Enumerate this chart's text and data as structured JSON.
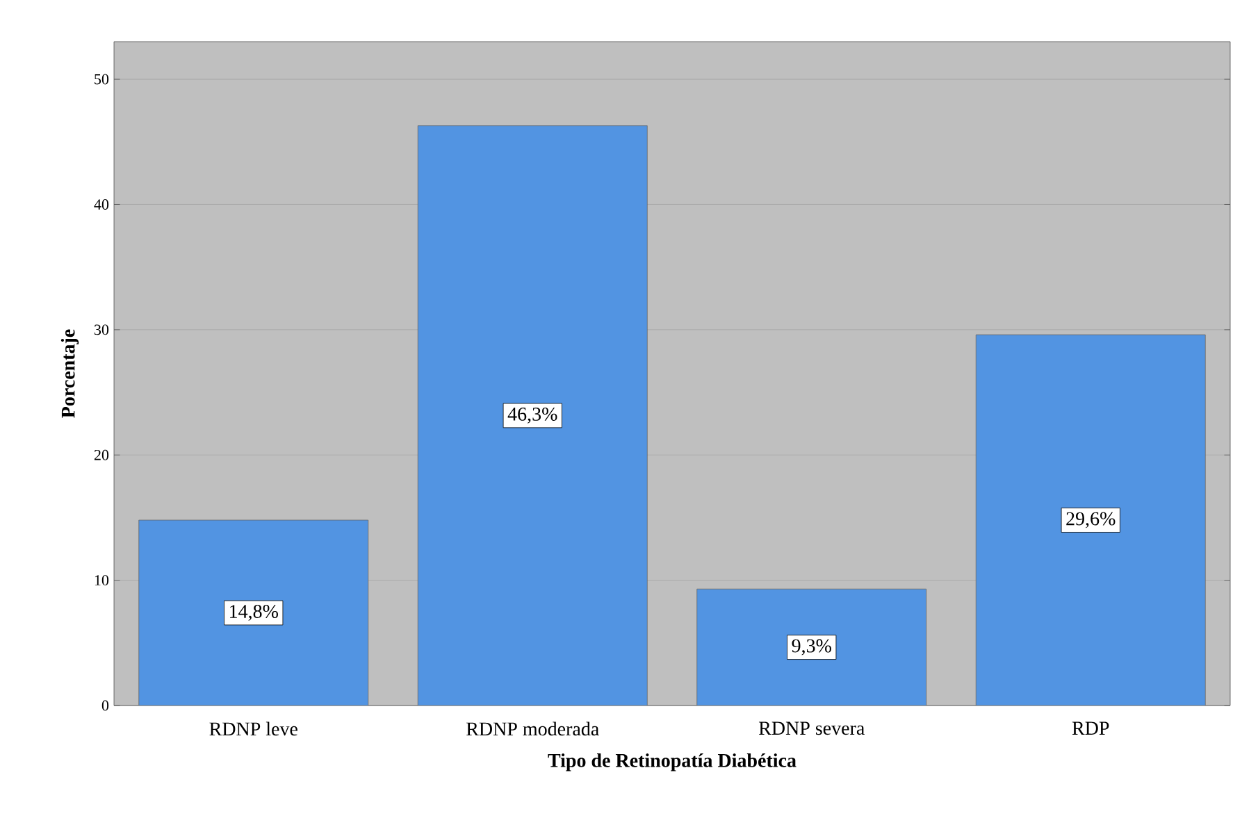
{
  "chart_data": {
    "type": "bar",
    "xlabel": "Tipo de Retinopatía Diabética",
    "ylabel": "Porcentaje",
    "categories": [
      "RDNP leve",
      "RDNP moderada",
      "RDNP severa",
      "RDP"
    ],
    "values": [
      14.8,
      46.3,
      9.3,
      29.6
    ],
    "value_labels": [
      "14,8%",
      "46,3%",
      "9,3%",
      "29,6%"
    ],
    "color": "#5294e2",
    "ylim": [
      0,
      53
    ],
    "yticks": [
      0,
      10,
      20,
      30,
      40,
      50
    ],
    "grid": "y"
  }
}
